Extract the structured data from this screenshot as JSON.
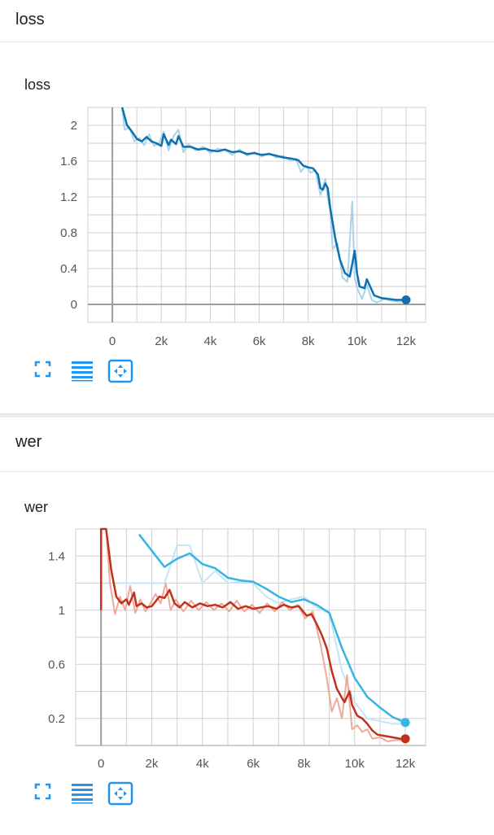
{
  "sections": [
    {
      "title": "loss",
      "card_title": "loss"
    },
    {
      "title": "wer",
      "card_title": "wer"
    }
  ],
  "icons": {
    "expand": "fullscreen-icon",
    "data": "data-table-icon",
    "fit": "fit-domain-icon"
  },
  "colors": {
    "loss_line": "#0f70b0",
    "loss_raw": "#a8d3ea",
    "wer_red": "#c0321d",
    "wer_red_raw": "#f0a898",
    "wer_blue": "#36b4e5",
    "wer_blue_raw": "#c2e6f5",
    "grid": "#d0d0d0",
    "axis": "#9e9e9e",
    "icon": "#2196f3"
  },
  "chart_data": [
    {
      "type": "line",
      "title": "loss",
      "xlim": [
        -1000,
        12800
      ],
      "ylim": [
        -0.2,
        2.2
      ],
      "x_ticks": [
        "0",
        "2k",
        "4k",
        "6k",
        "8k",
        "10k",
        "12k"
      ],
      "x_tick_values": [
        0,
        2000,
        4000,
        6000,
        8000,
        10000,
        12000
      ],
      "y_ticks": [
        "0",
        "0.4",
        "0.8",
        "1.2",
        "1.6",
        "2"
      ],
      "y_tick_values": [
        0,
        0.4,
        0.8,
        1.2,
        1.6,
        2
      ],
      "grid": true,
      "series": [
        {
          "color": "#0f70b0",
          "smoothed": [
            [
              400,
              2.2
            ],
            [
              600,
              2.0
            ],
            [
              800,
              1.93
            ],
            [
              1000,
              1.85
            ],
            [
              1200,
              1.82
            ],
            [
              1400,
              1.87
            ],
            [
              1600,
              1.82
            ],
            [
              1800,
              1.8
            ],
            [
              2000,
              1.77
            ],
            [
              2100,
              1.9
            ],
            [
              2300,
              1.78
            ],
            [
              2400,
              1.84
            ],
            [
              2600,
              1.79
            ],
            [
              2700,
              1.88
            ],
            [
              2900,
              1.76
            ],
            [
              3200,
              1.76
            ],
            [
              3500,
              1.73
            ],
            [
              3800,
              1.74
            ],
            [
              4000,
              1.72
            ],
            [
              4300,
              1.71
            ],
            [
              4600,
              1.73
            ],
            [
              4900,
              1.7
            ],
            [
              5200,
              1.71
            ],
            [
              5500,
              1.68
            ],
            [
              5800,
              1.69
            ],
            [
              6100,
              1.67
            ],
            [
              6400,
              1.68
            ],
            [
              6700,
              1.66
            ],
            [
              7000,
              1.64
            ],
            [
              7300,
              1.63
            ],
            [
              7600,
              1.61
            ],
            [
              7800,
              1.55
            ],
            [
              8000,
              1.53
            ],
            [
              8200,
              1.52
            ],
            [
              8400,
              1.45
            ],
            [
              8500,
              1.3
            ],
            [
              8600,
              1.28
            ],
            [
              8700,
              1.35
            ],
            [
              8800,
              1.3
            ],
            [
              8900,
              1.08
            ],
            [
              9100,
              0.75
            ],
            [
              9300,
              0.5
            ],
            [
              9500,
              0.35
            ],
            [
              9700,
              0.31
            ],
            [
              9800,
              0.45
            ],
            [
              9900,
              0.6
            ],
            [
              10000,
              0.34
            ],
            [
              10100,
              0.2
            ],
            [
              10300,
              0.18
            ],
            [
              10400,
              0.28
            ],
            [
              10500,
              0.22
            ],
            [
              10700,
              0.1
            ],
            [
              11000,
              0.07
            ],
            [
              11300,
              0.06
            ],
            [
              11600,
              0.05
            ],
            [
              12000,
              0.05
            ]
          ],
          "raw": [
            [
              400,
              2.3
            ],
            [
              500,
              1.95
            ],
            [
              700,
              1.98
            ],
            [
              900,
              1.82
            ],
            [
              1100,
              1.86
            ],
            [
              1300,
              1.78
            ],
            [
              1500,
              1.9
            ],
            [
              1700,
              1.77
            ],
            [
              1900,
              1.8
            ],
            [
              2100,
              1.93
            ],
            [
              2300,
              1.72
            ],
            [
              2500,
              1.88
            ],
            [
              2700,
              1.95
            ],
            [
              2900,
              1.7
            ],
            [
              3100,
              1.79
            ],
            [
              3400,
              1.72
            ],
            [
              3700,
              1.76
            ],
            [
              4000,
              1.69
            ],
            [
              4300,
              1.74
            ],
            [
              4600,
              1.72
            ],
            [
              4900,
              1.67
            ],
            [
              5200,
              1.73
            ],
            [
              5500,
              1.66
            ],
            [
              5800,
              1.7
            ],
            [
              6100,
              1.65
            ],
            [
              6400,
              1.69
            ],
            [
              6700,
              1.64
            ],
            [
              7000,
              1.66
            ],
            [
              7300,
              1.6
            ],
            [
              7500,
              1.63
            ],
            [
              7700,
              1.48
            ],
            [
              7900,
              1.55
            ],
            [
              8100,
              1.47
            ],
            [
              8300,
              1.5
            ],
            [
              8500,
              1.22
            ],
            [
              8700,
              1.4
            ],
            [
              8800,
              1.2
            ],
            [
              8900,
              1.05
            ],
            [
              9000,
              0.62
            ],
            [
              9200,
              0.68
            ],
            [
              9400,
              0.3
            ],
            [
              9600,
              0.25
            ],
            [
              9800,
              1.15
            ],
            [
              9900,
              0.3
            ],
            [
              10000,
              0.18
            ],
            [
              10200,
              0.06
            ],
            [
              10400,
              0.22
            ],
            [
              10600,
              0.05
            ],
            [
              10800,
              0.02
            ],
            [
              11100,
              0.06
            ],
            [
              11400,
              0.04
            ],
            [
              11700,
              0.03
            ],
            [
              12000,
              0.04
            ]
          ],
          "end": [
            12000,
            0.05
          ]
        }
      ]
    },
    {
      "type": "line",
      "title": "wer",
      "xlim": [
        -1000,
        12800
      ],
      "ylim": [
        0,
        1.6
      ],
      "x_ticks": [
        "0",
        "2k",
        "4k",
        "6k",
        "8k",
        "10k",
        "12k"
      ],
      "x_tick_values": [
        0,
        2000,
        4000,
        6000,
        8000,
        10000,
        12000
      ],
      "y_ticks": [
        "0.2",
        "0.6",
        "1",
        "1.4"
      ],
      "y_tick_values": [
        0.2,
        0.6,
        1,
        1.4
      ],
      "grid": true,
      "series": [
        {
          "color": "#36b4e5",
          "smoothed": [
            [
              1500,
              1.56
            ],
            [
              2500,
              1.32
            ],
            [
              3000,
              1.38
            ],
            [
              3500,
              1.42
            ],
            [
              4000,
              1.34
            ],
            [
              4500,
              1.31
            ],
            [
              5000,
              1.24
            ],
            [
              5500,
              1.22
            ],
            [
              6000,
              1.21
            ],
            [
              6500,
              1.16
            ],
            [
              7000,
              1.1
            ],
            [
              7500,
              1.06
            ],
            [
              8000,
              1.08
            ],
            [
              8500,
              1.04
            ],
            [
              9000,
              0.98
            ],
            [
              9500,
              0.72
            ],
            [
              10000,
              0.5
            ],
            [
              10500,
              0.36
            ],
            [
              11000,
              0.28
            ],
            [
              11500,
              0.21
            ],
            [
              12000,
              0.17
            ]
          ],
          "raw": [
            [
              0,
              1.2
            ],
            [
              500,
              1.2
            ],
            [
              1000,
              1.2
            ],
            [
              1500,
              1.2
            ],
            [
              2000,
              1.2
            ],
            [
              2500,
              1.2
            ],
            [
              3000,
              1.48
            ],
            [
              3500,
              1.48
            ],
            [
              4000,
              1.2
            ],
            [
              4500,
              1.29
            ],
            [
              5000,
              1.2
            ],
            [
              5500,
              1.21
            ],
            [
              6000,
              1.2
            ],
            [
              6500,
              1.1
            ],
            [
              7000,
              1.05
            ],
            [
              7500,
              1.08
            ],
            [
              8000,
              1.1
            ],
            [
              8500,
              1.02
            ],
            [
              9000,
              0.98
            ],
            [
              9500,
              0.55
            ],
            [
              10000,
              0.32
            ],
            [
              10500,
              0.2
            ],
            [
              11000,
              0.18
            ],
            [
              11500,
              0.16
            ],
            [
              12000,
              0.16
            ]
          ],
          "end": [
            12000,
            0.17
          ]
        },
        {
          "color": "#c0321d",
          "smoothed": [
            [
              0,
              1.0
            ],
            [
              0,
              1.6
            ],
            [
              200,
              1.6
            ],
            [
              400,
              1.3
            ],
            [
              600,
              1.1
            ],
            [
              800,
              1.05
            ],
            [
              1000,
              1.08
            ],
            [
              1100,
              1.04
            ],
            [
              1300,
              1.13
            ],
            [
              1400,
              1.03
            ],
            [
              1600,
              1.05
            ],
            [
              1800,
              1.02
            ],
            [
              2000,
              1.03
            ],
            [
              2300,
              1.1
            ],
            [
              2500,
              1.09
            ],
            [
              2700,
              1.15
            ],
            [
              2900,
              1.05
            ],
            [
              3100,
              1.02
            ],
            [
              3300,
              1.06
            ],
            [
              3600,
              1.02
            ],
            [
              3900,
              1.05
            ],
            [
              4200,
              1.03
            ],
            [
              4500,
              1.04
            ],
            [
              4800,
              1.02
            ],
            [
              5100,
              1.06
            ],
            [
              5400,
              1.01
            ],
            [
              5700,
              1.03
            ],
            [
              6000,
              1.01
            ],
            [
              6300,
              1.02
            ],
            [
              6600,
              1.03
            ],
            [
              6900,
              1.01
            ],
            [
              7200,
              1.04
            ],
            [
              7500,
              1.02
            ],
            [
              7800,
              1.03
            ],
            [
              8100,
              0.96
            ],
            [
              8300,
              0.97
            ],
            [
              8500,
              0.9
            ],
            [
              8700,
              0.82
            ],
            [
              8900,
              0.72
            ],
            [
              9100,
              0.55
            ],
            [
              9300,
              0.42
            ],
            [
              9500,
              0.35
            ],
            [
              9600,
              0.32
            ],
            [
              9800,
              0.4
            ],
            [
              9900,
              0.3
            ],
            [
              10100,
              0.22
            ],
            [
              10300,
              0.2
            ],
            [
              10500,
              0.16
            ],
            [
              10700,
              0.11
            ],
            [
              10900,
              0.08
            ],
            [
              11200,
              0.07
            ],
            [
              11500,
              0.06
            ],
            [
              11800,
              0.05
            ],
            [
              12000,
              0.05
            ]
          ],
          "raw": [
            [
              200,
              1.6
            ],
            [
              350,
              1.2
            ],
            [
              550,
              0.97
            ],
            [
              750,
              1.1
            ],
            [
              950,
              1.0
            ],
            [
              1150,
              1.18
            ],
            [
              1350,
              0.98
            ],
            [
              1550,
              1.08
            ],
            [
              1750,
              0.99
            ],
            [
              1950,
              1.05
            ],
            [
              2150,
              1.12
            ],
            [
              2350,
              1.05
            ],
            [
              2550,
              1.2
            ],
            [
              2750,
              1.0
            ],
            [
              2950,
              1.08
            ],
            [
              3250,
              0.99
            ],
            [
              3550,
              1.07
            ],
            [
              3850,
              1.0
            ],
            [
              4150,
              1.06
            ],
            [
              4450,
              1.0
            ],
            [
              4750,
              1.05
            ],
            [
              5050,
              0.99
            ],
            [
              5350,
              1.07
            ],
            [
              5650,
              0.99
            ],
            [
              5950,
              1.04
            ],
            [
              6250,
              0.98
            ],
            [
              6550,
              1.05
            ],
            [
              6850,
              0.99
            ],
            [
              7150,
              1.06
            ],
            [
              7450,
              1.0
            ],
            [
              7750,
              1.04
            ],
            [
              8050,
              0.94
            ],
            [
              8350,
              0.99
            ],
            [
              8650,
              0.75
            ],
            [
              8900,
              0.5
            ],
            [
              9100,
              0.25
            ],
            [
              9300,
              0.35
            ],
            [
              9500,
              0.2
            ],
            [
              9700,
              0.52
            ],
            [
              9900,
              0.12
            ],
            [
              10100,
              0.15
            ],
            [
              10300,
              0.1
            ],
            [
              10500,
              0.12
            ],
            [
              10700,
              0.05
            ],
            [
              11000,
              0.06
            ],
            [
              11300,
              0.03
            ],
            [
              11600,
              0.04
            ],
            [
              12000,
              0.04
            ]
          ],
          "end": [
            12000,
            0.05
          ]
        }
      ]
    }
  ]
}
